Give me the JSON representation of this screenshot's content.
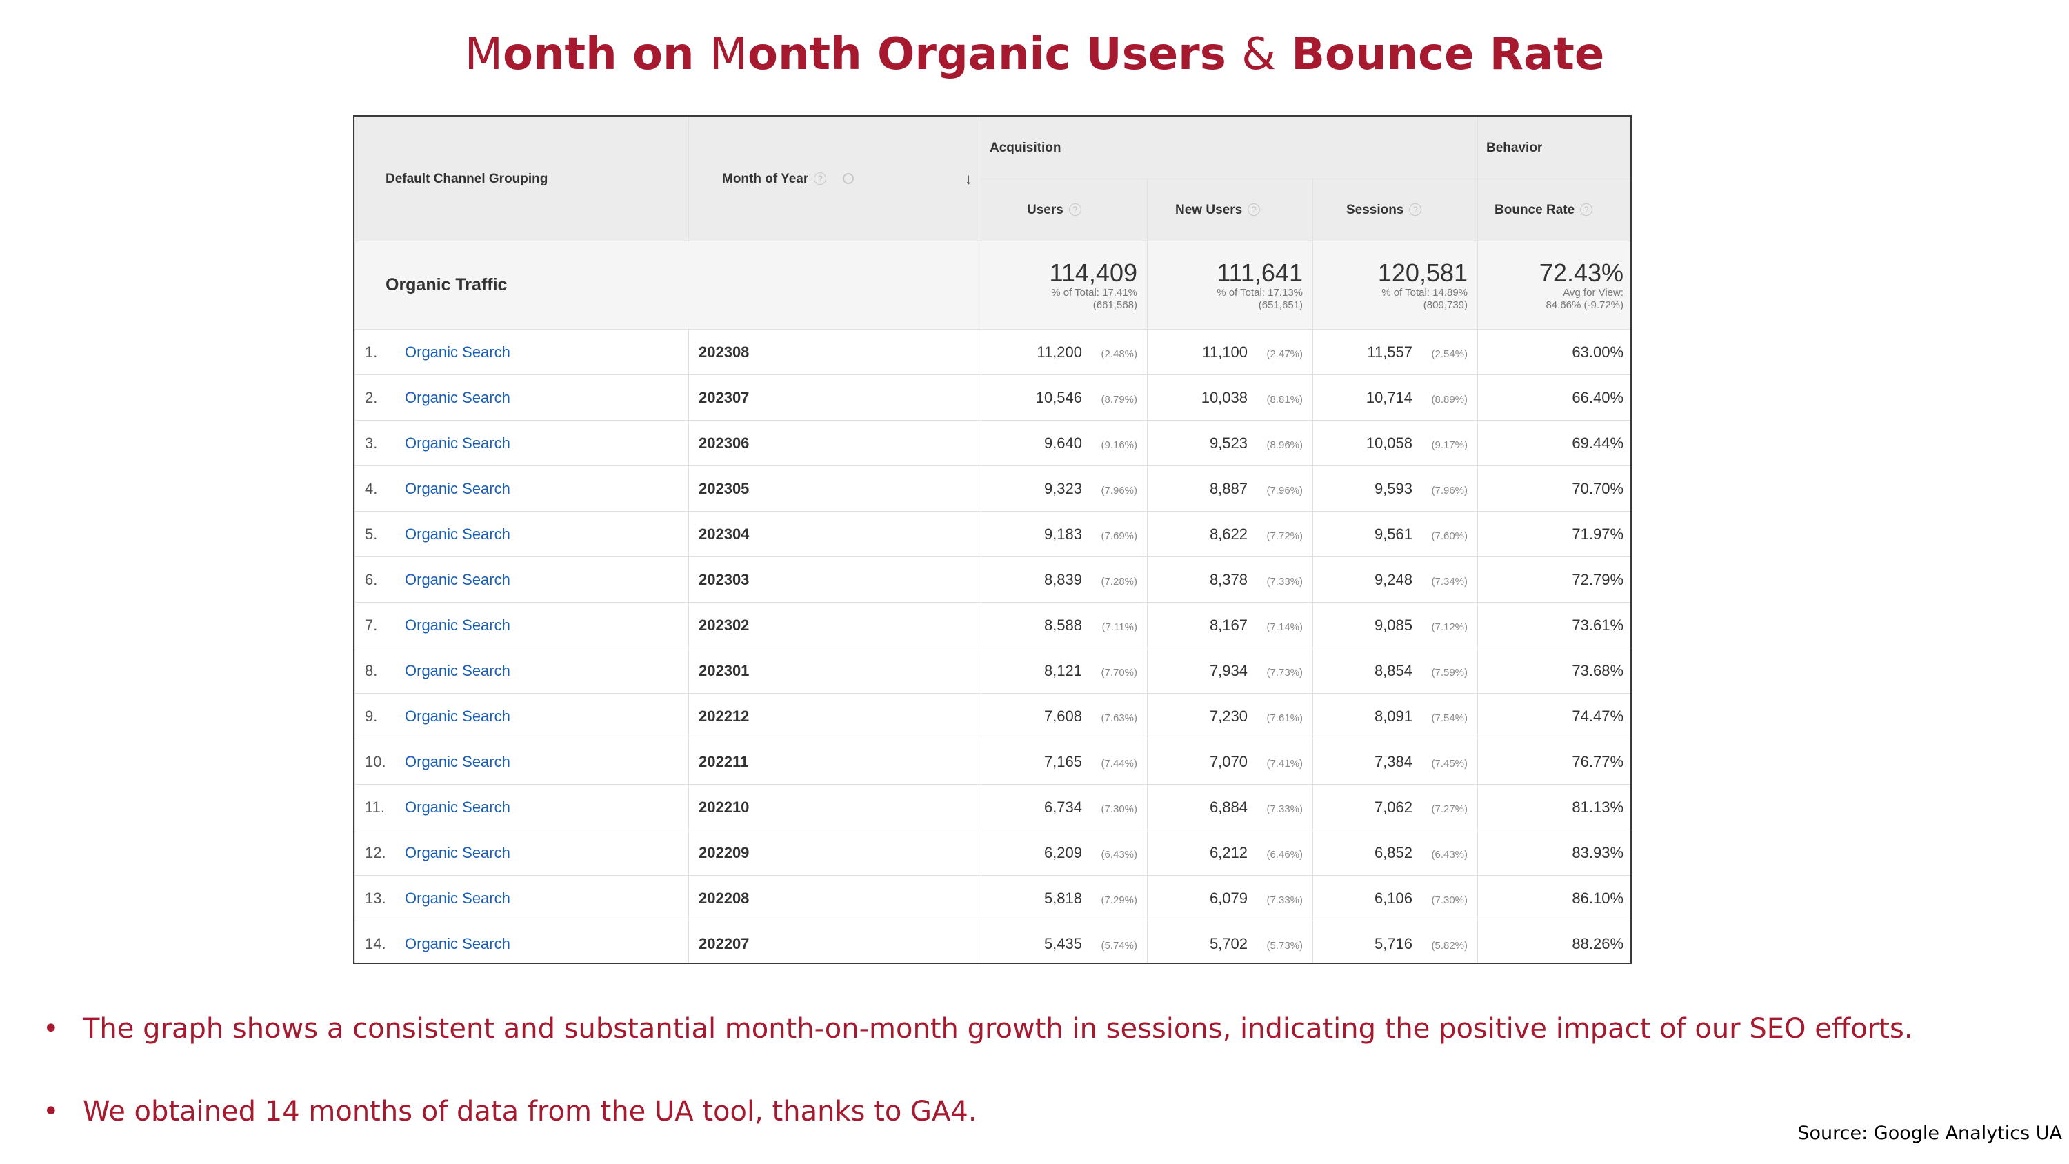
{
  "title": {
    "part1_initial": "M",
    "part1_rest": "onth on ",
    "part2_initial": "M",
    "part2_rest": "onth Organic Users ",
    "amp": "&",
    "part3": " Bounce Rate"
  },
  "report": {
    "dimension_header": "Default Channel Grouping",
    "month_header": "Month of Year",
    "sort_icon": "arrow-down-icon",
    "help_icon_glyph": "?",
    "group_acquisition": "Acquisition",
    "group_behavior": "Behavior",
    "metrics": [
      "Users",
      "New Users",
      "Sessions",
      "Bounce Rate"
    ],
    "totals": {
      "label": "Organic Traffic",
      "users": {
        "value": "114,409",
        "line1": "% of Total: 17.41%",
        "line2": "(661,568)"
      },
      "new_users": {
        "value": "111,641",
        "line1": "% of Total: 17.13%",
        "line2": "(651,651)"
      },
      "sessions": {
        "value": "120,581",
        "line1": "% of Total: 14.89%",
        "line2": "(809,739)"
      },
      "bounce_rate": {
        "value": "72.43%",
        "line1": "Avg for View:",
        "line2": "84.66% (-9.72%)"
      }
    },
    "rows": [
      {
        "num": "1.",
        "channel": "Organic Search",
        "month": "202308",
        "users": "11,200",
        "users_pct": "(2.48%)",
        "new_users": "11,100",
        "new_users_pct": "(2.47%)",
        "sessions": "11,557",
        "sessions_pct": "(2.54%)",
        "bounce": "63.00%"
      },
      {
        "num": "2.",
        "channel": "Organic Search",
        "month": "202307",
        "users": "10,546",
        "users_pct": "(8.79%)",
        "new_users": "10,038",
        "new_users_pct": "(8.81%)",
        "sessions": "10,714",
        "sessions_pct": "(8.89%)",
        "bounce": "66.40%"
      },
      {
        "num": "3.",
        "channel": "Organic Search",
        "month": "202306",
        "users": "9,640",
        "users_pct": "(9.16%)",
        "new_users": "9,523",
        "new_users_pct": "(8.96%)",
        "sessions": "10,058",
        "sessions_pct": "(9.17%)",
        "bounce": "69.44%"
      },
      {
        "num": "4.",
        "channel": "Organic Search",
        "month": "202305",
        "users": "9,323",
        "users_pct": "(7.96%)",
        "new_users": "8,887",
        "new_users_pct": "(7.96%)",
        "sessions": "9,593",
        "sessions_pct": "(7.96%)",
        "bounce": "70.70%"
      },
      {
        "num": "5.",
        "channel": "Organic Search",
        "month": "202304",
        "users": "9,183",
        "users_pct": "(7.69%)",
        "new_users": "8,622",
        "new_users_pct": "(7.72%)",
        "sessions": "9,561",
        "sessions_pct": "(7.60%)",
        "bounce": "71.97%"
      },
      {
        "num": "6.",
        "channel": "Organic Search",
        "month": "202303",
        "users": "8,839",
        "users_pct": "(7.28%)",
        "new_users": "8,378",
        "new_users_pct": "(7.33%)",
        "sessions": "9,248",
        "sessions_pct": "(7.34%)",
        "bounce": "72.79%"
      },
      {
        "num": "7.",
        "channel": "Organic Search",
        "month": "202302",
        "users": "8,588",
        "users_pct": "(7.11%)",
        "new_users": "8,167",
        "new_users_pct": "(7.14%)",
        "sessions": "9,085",
        "sessions_pct": "(7.12%)",
        "bounce": "73.61%"
      },
      {
        "num": "8.",
        "channel": "Organic Search",
        "month": "202301",
        "users": "8,121",
        "users_pct": "(7.70%)",
        "new_users": "7,934",
        "new_users_pct": "(7.73%)",
        "sessions": "8,854",
        "sessions_pct": "(7.59%)",
        "bounce": "73.68%"
      },
      {
        "num": "9.",
        "channel": "Organic Search",
        "month": "202212",
        "users": "7,608",
        "users_pct": "(7.63%)",
        "new_users": "7,230",
        "new_users_pct": "(7.61%)",
        "sessions": "8,091",
        "sessions_pct": "(7.54%)",
        "bounce": "74.47%"
      },
      {
        "num": "10.",
        "channel": "Organic Search",
        "month": "202211",
        "users": "7,165",
        "users_pct": "(7.44%)",
        "new_users": "7,070",
        "new_users_pct": "(7.41%)",
        "sessions": "7,384",
        "sessions_pct": "(7.45%)",
        "bounce": "76.77%"
      },
      {
        "num": "11.",
        "channel": "Organic Search",
        "month": "202210",
        "users": "6,734",
        "users_pct": "(7.30%)",
        "new_users": "6,884",
        "new_users_pct": "(7.33%)",
        "sessions": "7,062",
        "sessions_pct": "(7.27%)",
        "bounce": "81.13%"
      },
      {
        "num": "12.",
        "channel": "Organic Search",
        "month": "202209",
        "users": "6,209",
        "users_pct": "(6.43%)",
        "new_users": "6,212",
        "new_users_pct": "(6.46%)",
        "sessions": "6,852",
        "sessions_pct": "(6.43%)",
        "bounce": "83.93%"
      },
      {
        "num": "13.",
        "channel": "Organic Search",
        "month": "202208",
        "users": "5,818",
        "users_pct": "(7.29%)",
        "new_users": "6,079",
        "new_users_pct": "(7.33%)",
        "sessions": "6,106",
        "sessions_pct": "(7.30%)",
        "bounce": "86.10%"
      },
      {
        "num": "14.",
        "channel": "Organic Search",
        "month": "202207",
        "users": "5,435",
        "users_pct": "(5.74%)",
        "new_users": "5,702",
        "new_users_pct": "(5.73%)",
        "sessions": "5,716",
        "sessions_pct": "(5.82%)",
        "bounce": "88.26%"
      }
    ]
  },
  "bullets": [
    "The graph shows a consistent and substantial month-on-month growth in sessions, indicating the positive impact of our SEO efforts.",
    "We obtained 14 months of data from the UA tool, thanks to GA4."
  ],
  "bullet_glyph": "•",
  "source": "Source: Google Analytics UA",
  "colors": {
    "accent": "#a6192e",
    "link": "#1a5fb4",
    "header_bg": "#ececec",
    "totals_bg": "#f5f5f5"
  }
}
